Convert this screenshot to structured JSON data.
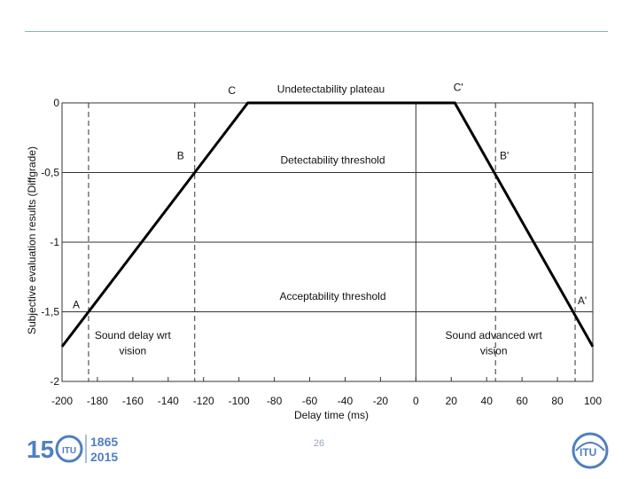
{
  "chart_data": {
    "type": "line",
    "title": "",
    "xlabel": "Delay time (ms)",
    "ylabel": "Subjective evaluation results (Diffgrade)",
    "xlim": [
      -200,
      100
    ],
    "ylim": [
      -2,
      0
    ],
    "x_ticks": [
      -200,
      -180,
      -160,
      -140,
      -120,
      -100,
      -80,
      -60,
      -40,
      -20,
      0,
      20,
      40,
      60,
      80,
      100
    ],
    "y_ticks": [
      0,
      -0.5,
      -1,
      -1.5,
      -2
    ],
    "y_tick_labels": [
      "0",
      "-0,5",
      "-1",
      "-1,5",
      "-2"
    ],
    "grid": "horizontal",
    "series": [
      {
        "x": [
          -200,
          -95,
          22,
          100
        ],
        "y": [
          -1.75,
          0,
          0,
          -1.75
        ]
      }
    ],
    "vertical_lines": [
      {
        "x": -185,
        "style": "dashed"
      },
      {
        "x": -125,
        "style": "dashed"
      },
      {
        "x": 45,
        "style": "dashed"
      },
      {
        "x": 90,
        "style": "dashed"
      },
      {
        "x": 0,
        "style": "solid"
      }
    ],
    "point_labels": [
      {
        "text": "A",
        "x": -192,
        "y": -1.45
      },
      {
        "text": "B",
        "x": -133,
        "y": -0.38
      },
      {
        "text": "C",
        "x": -104,
        "y": 0.09
      },
      {
        "text": "A'",
        "x": 94,
        "y": -1.42
      },
      {
        "text": "B'",
        "x": 50,
        "y": -0.38
      },
      {
        "text": "C'",
        "x": 24,
        "y": 0.11
      }
    ],
    "annotations": [
      {
        "text": "Undetectability plateau",
        "x": -48,
        "y": 0.1
      },
      {
        "text": "Detectability threshold",
        "x": -47,
        "y": -0.41
      },
      {
        "text": "Acceptability threshold",
        "x": -47,
        "y": -1.39
      },
      {
        "text": "Sound delay wrt",
        "x": -160,
        "y": -1.67
      },
      {
        "text": "vision",
        "x": -160,
        "y": -1.78
      },
      {
        "text": "Sound advanced wrt",
        "x": 44,
        "y": -1.67
      },
      {
        "text": "vision",
        "x": 44,
        "y": -1.78
      }
    ]
  },
  "footer": {
    "page_number": "26",
    "logo_left_text": "150 ITU 1865 2015",
    "logo_right_text": "ITU"
  }
}
